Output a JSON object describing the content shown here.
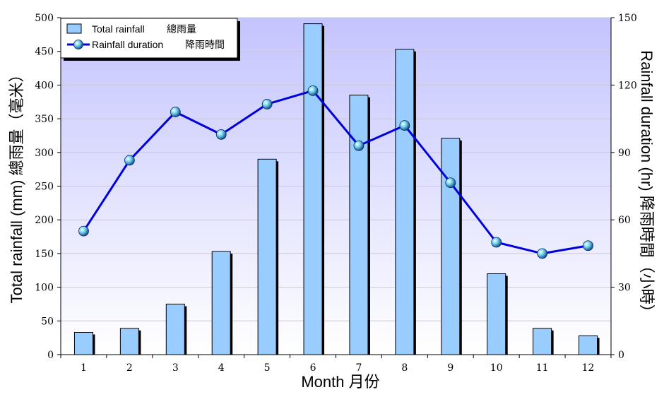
{
  "chart_data": {
    "type": "bar+line",
    "categories": [
      "1",
      "2",
      "3",
      "4",
      "5",
      "6",
      "7",
      "8",
      "9",
      "10",
      "11",
      "12"
    ],
    "series": [
      {
        "name": "Total rainfall 總雨量",
        "type": "bar",
        "axis": "left",
        "values": [
          33,
          39,
          75,
          153,
          290,
          491,
          385,
          453,
          321,
          120,
          39,
          28
        ],
        "color": "#99ccff"
      },
      {
        "name": "Rainfall duration 降雨時間",
        "type": "line",
        "axis": "right",
        "values": [
          55,
          86.5,
          108,
          98,
          111.5,
          117.5,
          93,
          102,
          76.5,
          50,
          45,
          48.5
        ],
        "color": "#0000dd"
      }
    ],
    "legend": {
      "bar_label": "Total rainfall",
      "bar_label_zh": "總雨量",
      "line_label": "Rainfall duration",
      "line_label_zh": "降雨時間",
      "placement": "top-left"
    },
    "xlabel": "Month 月份",
    "ylabel_left": "Total rainfall (mm) 總雨量（毫米）",
    "ylabel_right": "Rainfall duration (hr) 降雨時間（小時）",
    "ylim_left": [
      0,
      500
    ],
    "yticks_left": [
      0,
      50,
      100,
      150,
      200,
      250,
      300,
      350,
      400,
      450,
      500
    ],
    "ylim_right": [
      0,
      150
    ],
    "yticks_right": [
      0,
      30,
      60,
      90,
      120,
      150
    ],
    "grid": true,
    "background": "gradient lavender to white"
  }
}
